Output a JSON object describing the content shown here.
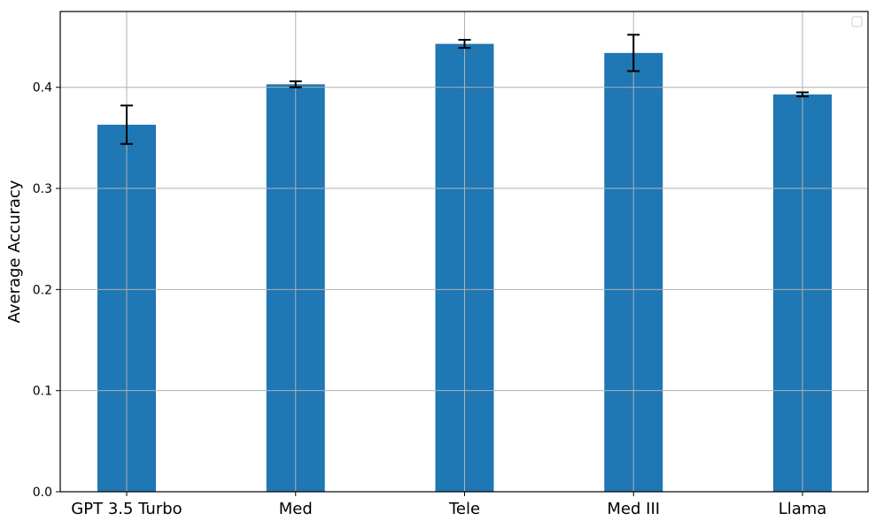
{
  "chart_data": {
    "type": "bar",
    "title": "",
    "xlabel": "",
    "ylabel": "Average Accuracy",
    "categories": [
      "GPT 3.5 Turbo",
      "Med",
      "Tele",
      "Med III",
      "Llama"
    ],
    "values": [
      0.363,
      0.403,
      0.443,
      0.434,
      0.393
    ],
    "errors": [
      0.019,
      0.003,
      0.004,
      0.018,
      0.002
    ],
    "ylim": [
      0,
      0.475
    ],
    "yticks": [
      0.0,
      0.1,
      0.2,
      0.3,
      0.4
    ],
    "ytick_labels": [
      "0.0",
      "0.1",
      "0.2",
      "0.3",
      "0.4"
    ],
    "grid": true,
    "legend": "top-right (empty)",
    "colors": {
      "bar": "#1f77b4",
      "grid": "#b0b0b0",
      "error_bar": "#000000"
    }
  }
}
